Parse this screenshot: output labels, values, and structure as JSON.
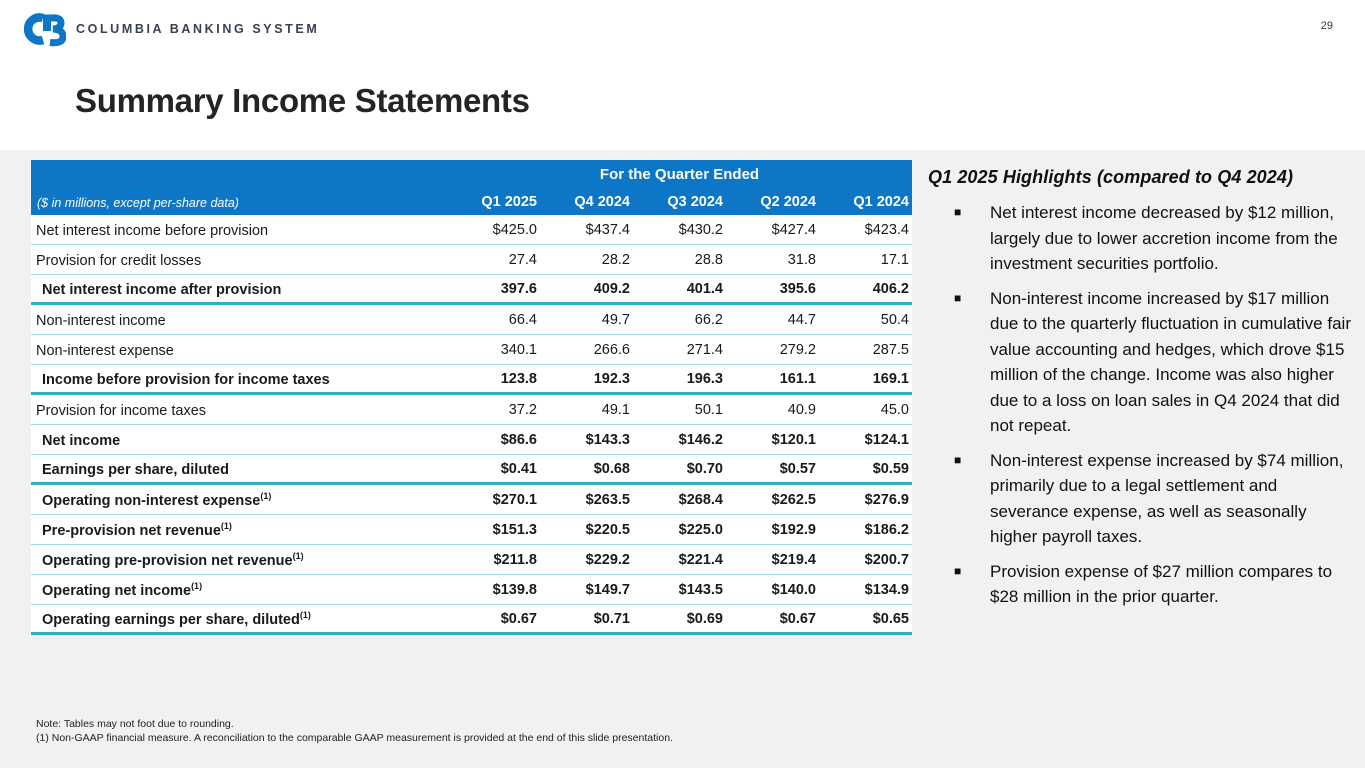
{
  "page": {
    "number": "29"
  },
  "logo": {
    "monogram": "CB",
    "brand": "COLUMBIA BANKING SYSTEM"
  },
  "title": "Summary Income Statements",
  "colors": {
    "header_blue": "#0e76c6",
    "thin_rule_teal": "#a6dee3",
    "thick_rule_teal": "#2fafc4",
    "content_bg": "#f1f1f2",
    "logo_blue": "#0e76c6"
  },
  "table": {
    "group_label": "For the Quarter Ended",
    "unit_note": "($ in millions, except per-share data)",
    "columns": [
      "Q1 2025",
      "Q4 2024",
      "Q3 2024",
      "Q2 2024",
      "Q1 2024"
    ],
    "rows": [
      {
        "label": "Net interest income before provision",
        "sup": "",
        "bold": false,
        "border": "thin",
        "values": [
          "$425.0",
          "$437.4",
          "$430.2",
          "$427.4",
          "$423.4"
        ]
      },
      {
        "label": "Provision for credit losses",
        "sup": "",
        "bold": false,
        "border": "thin",
        "values": [
          "27.4",
          "28.2",
          "28.8",
          "31.8",
          "17.1"
        ]
      },
      {
        "label": "Net interest income after provision",
        "sup": "",
        "bold": true,
        "border": "thick",
        "values": [
          "397.6",
          "409.2",
          "401.4",
          "395.6",
          "406.2"
        ]
      },
      {
        "label": "Non-interest income",
        "sup": "",
        "bold": false,
        "border": "thin",
        "values": [
          "66.4",
          "49.7",
          "66.2",
          "44.7",
          "50.4"
        ]
      },
      {
        "label": "Non-interest expense",
        "sup": "",
        "bold": false,
        "border": "thin",
        "values": [
          "340.1",
          "266.6",
          "271.4",
          "279.2",
          "287.5"
        ]
      },
      {
        "label": "Income before provision for income taxes",
        "sup": "",
        "bold": true,
        "border": "thick",
        "values": [
          "123.8",
          "192.3",
          "196.3",
          "161.1",
          "169.1"
        ]
      },
      {
        "label": "Provision for income taxes",
        "sup": "",
        "bold": false,
        "border": "thin",
        "values": [
          "37.2",
          "49.1",
          "50.1",
          "40.9",
          "45.0"
        ]
      },
      {
        "label": "Net income",
        "sup": "",
        "bold": true,
        "border": "thin",
        "values": [
          "$86.6",
          "$143.3",
          "$146.2",
          "$120.1",
          "$124.1"
        ]
      },
      {
        "label": "Earnings per share, diluted",
        "sup": "",
        "bold": true,
        "border": "thick",
        "values": [
          "$0.41",
          "$0.68",
          "$0.70",
          "$0.57",
          "$0.59"
        ]
      },
      {
        "label": "Operating non-interest expense",
        "sup": "(1)",
        "bold": true,
        "border": "thin",
        "values": [
          "$270.1",
          "$263.5",
          "$268.4",
          "$262.5",
          "$276.9"
        ]
      },
      {
        "label": "Pre-provision net revenue",
        "sup": "(1)",
        "bold": true,
        "border": "thin",
        "values": [
          "$151.3",
          "$220.5",
          "$225.0",
          "$192.9",
          "$186.2"
        ]
      },
      {
        "label": "Operating pre-provision net revenue",
        "sup": "(1)",
        "bold": true,
        "border": "thin",
        "values": [
          "$211.8",
          "$229.2",
          "$221.4",
          "$219.4",
          "$200.7"
        ]
      },
      {
        "label": "Operating net income",
        "sup": "(1)",
        "bold": true,
        "border": "thin",
        "values": [
          "$139.8",
          "$149.7",
          "$143.5",
          "$140.0",
          "$134.9"
        ]
      },
      {
        "label": "Operating earnings per share, diluted",
        "sup": "(1)",
        "bold": true,
        "border": "thick",
        "values": [
          "$0.67",
          "$0.71",
          "$0.69",
          "$0.67",
          "$0.65"
        ]
      }
    ]
  },
  "highlights": {
    "title": "Q1 2025 Highlights (compared to Q4 2024)",
    "bullets": [
      "Net interest income decreased by $12 million, largely due to lower accretion income from the investment securities portfolio.",
      "Non-interest income increased by $17 million due to the quarterly fluctuation in cumulative fair value accounting and hedges, which drove $15 million of the change. Income was also higher due to a loss on loan sales in Q4 2024 that did not repeat.",
      "Non-interest expense increased by $74 million, primarily due to a legal settlement and severance expense, as well as seasonally higher payroll taxes.",
      "Provision expense of $27 million compares to $28 million in the prior quarter."
    ]
  },
  "footnotes": [
    "Note: Tables may not foot due to rounding.",
    "(1)  Non-GAAP financial measure.  A reconciliation to the comparable GAAP measurement is provided at the end of this slide presentation."
  ]
}
